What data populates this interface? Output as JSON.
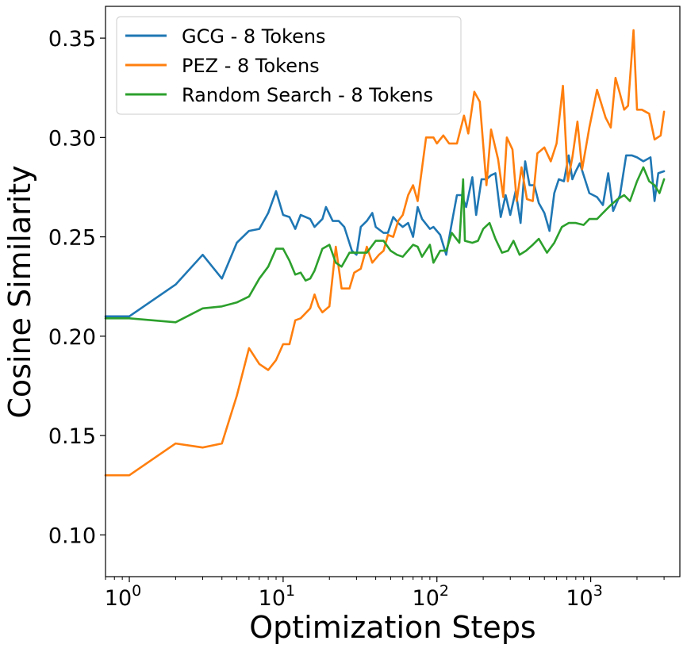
{
  "chart_data": {
    "type": "line",
    "title": "",
    "xlabel": "Optimization Steps",
    "ylabel": "Cosine Similarity",
    "xscale": "log",
    "xlim": [
      0.7,
      3800
    ],
    "ylim": [
      0.079,
      0.366
    ],
    "grid": false,
    "legend_position": "top-left",
    "x_ticks": [
      {
        "value": 1,
        "base": "10",
        "exp": "0"
      },
      {
        "value": 10,
        "base": "10",
        "exp": "1"
      },
      {
        "value": 100,
        "base": "10",
        "exp": "2"
      },
      {
        "value": 1000,
        "base": "10",
        "exp": "3"
      }
    ],
    "y_ticks": [
      {
        "value": 0.1,
        "label": "0.10"
      },
      {
        "value": 0.15,
        "label": "0.15"
      },
      {
        "value": 0.2,
        "label": "0.20"
      },
      {
        "value": 0.25,
        "label": "0.25"
      },
      {
        "value": 0.3,
        "label": "0.30"
      },
      {
        "value": 0.35,
        "label": "0.35"
      }
    ],
    "series": [
      {
        "name": "GCG - 8 Tokens",
        "color": "#1f77b4",
        "points": [
          [
            0.7,
            0.21
          ],
          [
            1,
            0.21
          ],
          [
            2,
            0.226
          ],
          [
            3,
            0.241
          ],
          [
            4,
            0.229
          ],
          [
            5,
            0.247
          ],
          [
            6,
            0.253
          ],
          [
            7,
            0.254
          ],
          [
            8,
            0.262
          ],
          [
            9,
            0.273
          ],
          [
            10,
            0.261
          ],
          [
            11,
            0.26
          ],
          [
            12,
            0.254
          ],
          [
            13,
            0.261
          ],
          [
            15,
            0.259
          ],
          [
            16,
            0.255
          ],
          [
            18,
            0.259
          ],
          [
            19,
            0.265
          ],
          [
            21,
            0.258
          ],
          [
            23,
            0.258
          ],
          [
            25,
            0.255
          ],
          [
            28,
            0.243
          ],
          [
            30,
            0.241
          ],
          [
            32,
            0.255
          ],
          [
            35,
            0.258
          ],
          [
            38,
            0.262
          ],
          [
            40,
            0.255
          ],
          [
            45,
            0.252
          ],
          [
            48,
            0.252
          ],
          [
            52,
            0.26
          ],
          [
            56,
            0.257
          ],
          [
            60,
            0.255
          ],
          [
            65,
            0.257
          ],
          [
            70,
            0.25
          ],
          [
            75,
            0.265
          ],
          [
            80,
            0.259
          ],
          [
            90,
            0.254
          ],
          [
            95,
            0.255
          ],
          [
            105,
            0.251
          ],
          [
            115,
            0.241
          ],
          [
            125,
            0.257
          ],
          [
            135,
            0.271
          ],
          [
            145,
            0.271
          ],
          [
            155,
            0.265
          ],
          [
            170,
            0.28
          ],
          [
            180,
            0.261
          ],
          [
            195,
            0.279
          ],
          [
            210,
            0.279
          ],
          [
            225,
            0.281
          ],
          [
            240,
            0.282
          ],
          [
            260,
            0.26
          ],
          [
            280,
            0.271
          ],
          [
            300,
            0.261
          ],
          [
            325,
            0.273
          ],
          [
            350,
            0.257
          ],
          [
            375,
            0.288
          ],
          [
            400,
            0.276
          ],
          [
            430,
            0.276
          ],
          [
            460,
            0.267
          ],
          [
            500,
            0.262
          ],
          [
            540,
            0.253
          ],
          [
            580,
            0.272
          ],
          [
            620,
            0.279
          ],
          [
            670,
            0.278
          ],
          [
            720,
            0.291
          ],
          [
            760,
            0.279
          ],
          [
            800,
            0.283
          ],
          [
            850,
            0.287
          ],
          [
            900,
            0.281
          ],
          [
            980,
            0.272
          ],
          [
            1100,
            0.27
          ],
          [
            1200,
            0.266
          ],
          [
            1300,
            0.282
          ],
          [
            1400,
            0.263
          ],
          [
            1550,
            0.271
          ],
          [
            1700,
            0.291
          ],
          [
            1850,
            0.291
          ],
          [
            2000,
            0.29
          ],
          [
            2200,
            0.288
          ],
          [
            2450,
            0.29
          ],
          [
            2600,
            0.268
          ],
          [
            2750,
            0.282
          ],
          [
            3000,
            0.283
          ]
        ]
      },
      {
        "name": "PEZ - 8 Tokens",
        "color": "#ff7f0e",
        "points": [
          [
            0.7,
            0.13
          ],
          [
            1,
            0.13
          ],
          [
            2,
            0.146
          ],
          [
            3,
            0.144
          ],
          [
            4,
            0.146
          ],
          [
            5,
            0.17
          ],
          [
            6,
            0.194
          ],
          [
            7,
            0.186
          ],
          [
            8,
            0.183
          ],
          [
            9,
            0.188
          ],
          [
            10,
            0.196
          ],
          [
            11,
            0.196
          ],
          [
            12,
            0.208
          ],
          [
            13,
            0.209
          ],
          [
            15,
            0.214
          ],
          [
            16,
            0.221
          ],
          [
            17,
            0.215
          ],
          [
            18,
            0.212
          ],
          [
            20,
            0.215
          ],
          [
            22,
            0.245
          ],
          [
            24,
            0.224
          ],
          [
            27,
            0.224
          ],
          [
            29,
            0.232
          ],
          [
            32,
            0.234
          ],
          [
            35,
            0.245
          ],
          [
            38,
            0.237
          ],
          [
            42,
            0.241
          ],
          [
            45,
            0.243
          ],
          [
            48,
            0.251
          ],
          [
            52,
            0.25
          ],
          [
            56,
            0.258
          ],
          [
            60,
            0.261
          ],
          [
            65,
            0.271
          ],
          [
            70,
            0.276
          ],
          [
            75,
            0.268
          ],
          [
            85,
            0.3
          ],
          [
            95,
            0.3
          ],
          [
            100,
            0.297
          ],
          [
            110,
            0.301
          ],
          [
            120,
            0.297
          ],
          [
            125,
            0.297
          ],
          [
            135,
            0.297
          ],
          [
            150,
            0.311
          ],
          [
            160,
            0.302
          ],
          [
            175,
            0.323
          ],
          [
            190,
            0.318
          ],
          [
            210,
            0.276
          ],
          [
            225,
            0.304
          ],
          [
            250,
            0.289
          ],
          [
            270,
            0.27
          ],
          [
            285,
            0.3
          ],
          [
            310,
            0.294
          ],
          [
            330,
            0.268
          ],
          [
            355,
            0.285
          ],
          [
            385,
            0.269
          ],
          [
            420,
            0.268
          ],
          [
            450,
            0.292
          ],
          [
            500,
            0.295
          ],
          [
            550,
            0.288
          ],
          [
            600,
            0.297
          ],
          [
            660,
            0.326
          ],
          [
            710,
            0.278
          ],
          [
            760,
            0.29
          ],
          [
            820,
            0.308
          ],
          [
            880,
            0.284
          ],
          [
            980,
            0.305
          ],
          [
            1100,
            0.324
          ],
          [
            1250,
            0.31
          ],
          [
            1350,
            0.305
          ],
          [
            1450,
            0.33
          ],
          [
            1550,
            0.322
          ],
          [
            1650,
            0.314
          ],
          [
            1750,
            0.316
          ],
          [
            1900,
            0.354
          ],
          [
            2000,
            0.314
          ],
          [
            2150,
            0.314
          ],
          [
            2400,
            0.312
          ],
          [
            2600,
            0.299
          ],
          [
            2850,
            0.301
          ],
          [
            3000,
            0.313
          ]
        ]
      },
      {
        "name": "Random Search - 8 Tokens",
        "color": "#2ca02c",
        "points": [
          [
            0.7,
            0.209
          ],
          [
            1,
            0.209
          ],
          [
            2,
            0.207
          ],
          [
            3,
            0.214
          ],
          [
            4,
            0.215
          ],
          [
            5,
            0.217
          ],
          [
            6,
            0.22
          ],
          [
            7,
            0.229
          ],
          [
            8,
            0.235
          ],
          [
            9,
            0.244
          ],
          [
            10,
            0.244
          ],
          [
            11,
            0.238
          ],
          [
            12,
            0.231
          ],
          [
            13,
            0.232
          ],
          [
            14,
            0.228
          ],
          [
            15,
            0.229
          ],
          [
            16,
            0.233
          ],
          [
            18,
            0.244
          ],
          [
            20,
            0.246
          ],
          [
            22,
            0.237
          ],
          [
            24,
            0.235
          ],
          [
            27,
            0.242
          ],
          [
            30,
            0.242
          ],
          [
            35,
            0.242
          ],
          [
            40,
            0.248
          ],
          [
            45,
            0.248
          ],
          [
            50,
            0.243
          ],
          [
            55,
            0.241
          ],
          [
            60,
            0.24
          ],
          [
            70,
            0.246
          ],
          [
            75,
            0.245
          ],
          [
            80,
            0.24
          ],
          [
            90,
            0.246
          ],
          [
            95,
            0.237
          ],
          [
            105,
            0.243
          ],
          [
            115,
            0.243
          ],
          [
            125,
            0.252
          ],
          [
            140,
            0.247
          ],
          [
            148,
            0.279
          ],
          [
            152,
            0.248
          ],
          [
            170,
            0.247
          ],
          [
            185,
            0.248
          ],
          [
            200,
            0.254
          ],
          [
            220,
            0.257
          ],
          [
            240,
            0.249
          ],
          [
            265,
            0.242
          ],
          [
            290,
            0.243
          ],
          [
            315,
            0.248
          ],
          [
            345,
            0.241
          ],
          [
            380,
            0.243
          ],
          [
            420,
            0.246
          ],
          [
            460,
            0.249
          ],
          [
            520,
            0.242
          ],
          [
            580,
            0.247
          ],
          [
            650,
            0.255
          ],
          [
            720,
            0.257
          ],
          [
            800,
            0.257
          ],
          [
            900,
            0.256
          ],
          [
            980,
            0.259
          ],
          [
            1100,
            0.259
          ],
          [
            1200,
            0.262
          ],
          [
            1350,
            0.266
          ],
          [
            1500,
            0.269
          ],
          [
            1650,
            0.271
          ],
          [
            1800,
            0.268
          ],
          [
            2000,
            0.278
          ],
          [
            2200,
            0.285
          ],
          [
            2400,
            0.278
          ],
          [
            2600,
            0.276
          ],
          [
            2800,
            0.272
          ],
          [
            3000,
            0.279
          ]
        ]
      }
    ]
  }
}
